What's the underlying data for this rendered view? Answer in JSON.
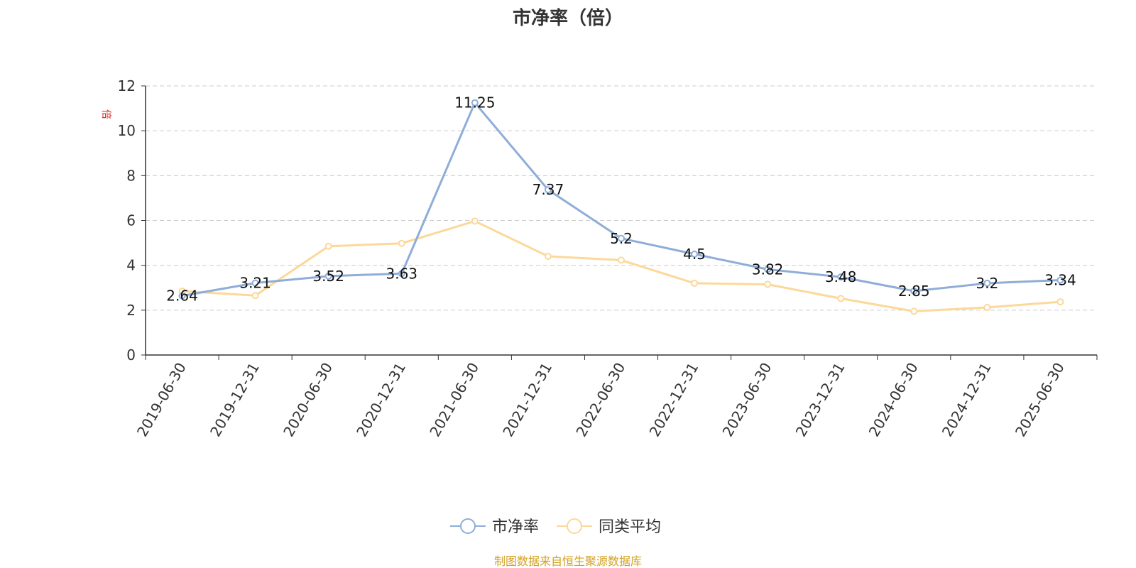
{
  "chart_data": {
    "type": "line",
    "title": "市净率（倍）",
    "unit_label": "倍",
    "categories": [
      "2019-06-30",
      "2019-12-31",
      "2020-06-30",
      "2020-12-31",
      "2021-06-30",
      "2021-12-31",
      "2022-06-30",
      "2022-12-31",
      "2023-06-30",
      "2023-12-31",
      "2024-06-30",
      "2024-12-31",
      "2025-06-30"
    ],
    "ylim": [
      0,
      12
    ],
    "yticks": [
      "0",
      "2",
      "4",
      "6",
      "8",
      "10",
      "12"
    ],
    "grid": true,
    "legend_position": "bottom",
    "series": [
      {
        "name": "市净率",
        "color": "#8eadd8",
        "values": [
          2.64,
          3.21,
          3.52,
          3.63,
          11.25,
          7.37,
          5.2,
          4.5,
          3.82,
          3.48,
          2.85,
          3.2,
          3.34
        ],
        "labels": [
          "2.64",
          "3.21",
          "3.52",
          "3.63",
          "11.25",
          "7.37",
          "5.2",
          "4.5",
          "3.82",
          "3.48",
          "2.85",
          "3.2",
          "3.34"
        ]
      },
      {
        "name": "同类平均",
        "color": "#fcd899",
        "values": [
          2.85,
          2.65,
          4.85,
          4.98,
          5.97,
          4.4,
          4.23,
          3.2,
          3.15,
          2.52,
          1.95,
          2.12,
          2.37
        ]
      }
    ]
  },
  "source_text": "制图数据来自恒生聚源数据库",
  "colors": {
    "axis": "#333333",
    "grid": "#cccccc",
    "unit": "#e0211b",
    "source": "#d4a022"
  }
}
